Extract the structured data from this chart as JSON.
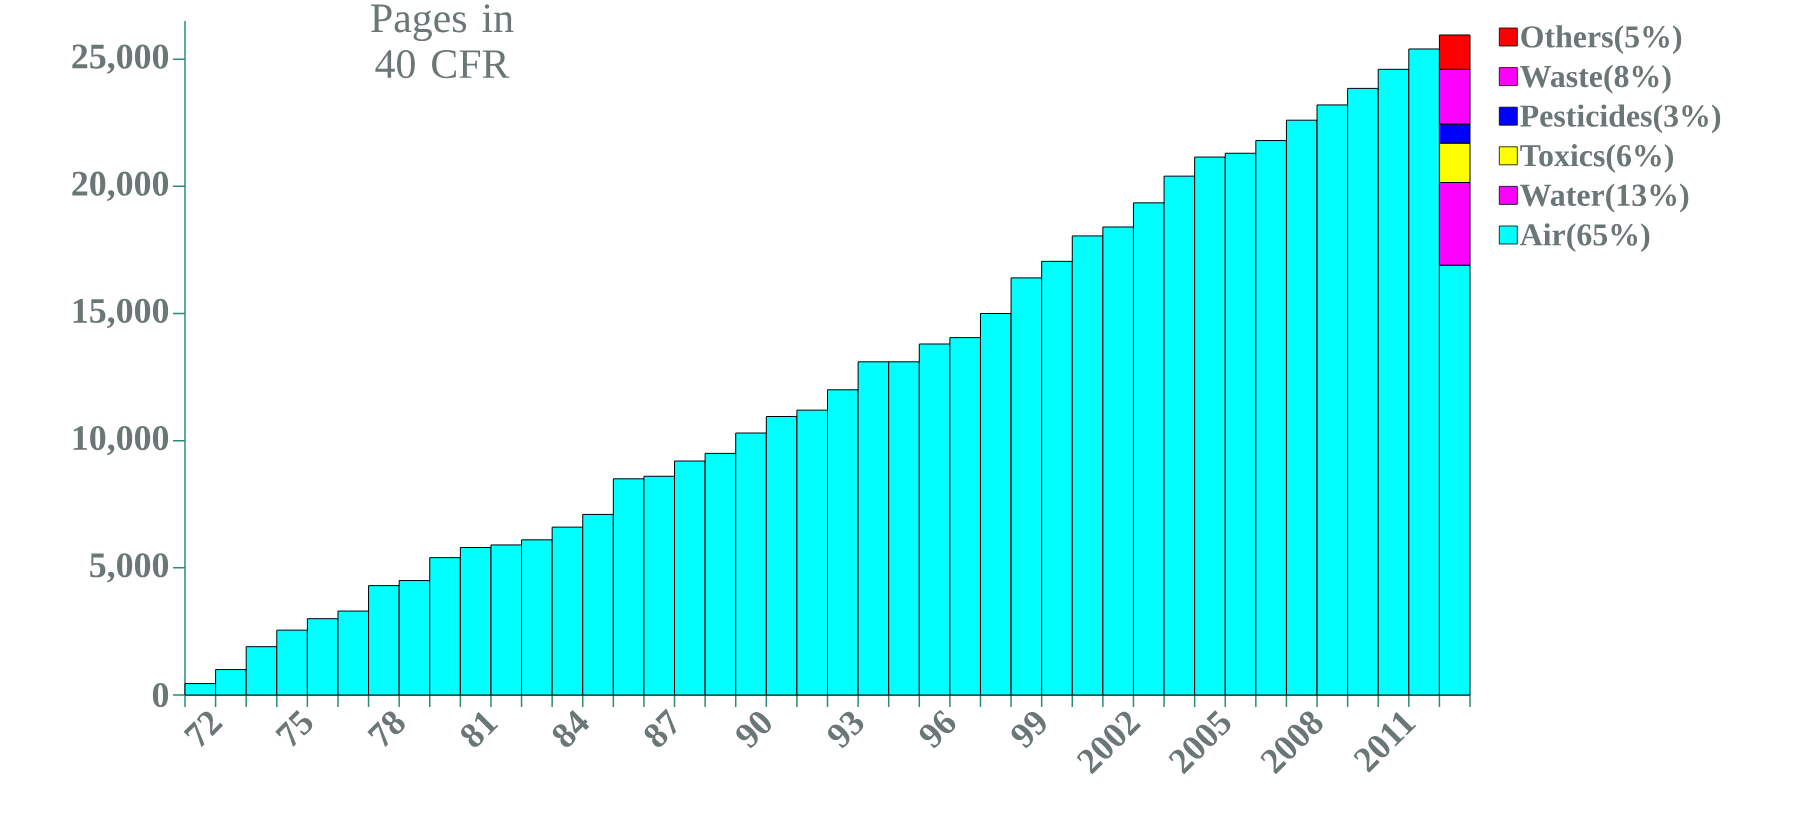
{
  "chart_data": {
    "type": "bar",
    "stacked": true,
    "title": "Pages in 40 CFR",
    "categories": [
      "72",
      null,
      null,
      "75",
      null,
      null,
      "78",
      null,
      null,
      "81",
      null,
      null,
      "84",
      null,
      null,
      "87",
      null,
      null,
      "90",
      null,
      null,
      "93",
      null,
      null,
      "96",
      null,
      null,
      "99",
      null,
      null,
      "2002",
      null,
      null,
      "2005",
      null,
      null,
      "2008",
      null,
      null,
      "2011",
      null,
      null
    ],
    "series": [
      {
        "name": "Air(65%)",
        "color": "#00ffff",
        "values": [
          450,
          1000,
          1900,
          2550,
          3000,
          3300,
          4300,
          4500,
          5400,
          5800,
          5900,
          6100,
          6600,
          7100,
          8500,
          8600,
          9200,
          9500,
          10300,
          10950,
          11200,
          12000,
          13100,
          13100,
          13800,
          14050,
          15000,
          16400,
          17050,
          18050,
          18400,
          19350,
          20400,
          21150,
          21300,
          21800,
          22600,
          23200,
          23850,
          24600,
          25400,
          16900
        ]
      },
      {
        "name": "Water(13%)",
        "color": "#ff00ff",
        "values": [
          null,
          null,
          null,
          null,
          null,
          null,
          null,
          null,
          null,
          null,
          null,
          null,
          null,
          null,
          null,
          null,
          null,
          null,
          null,
          null,
          null,
          null,
          null,
          null,
          null,
          null,
          null,
          null,
          null,
          null,
          null,
          null,
          null,
          null,
          null,
          null,
          null,
          null,
          null,
          null,
          null,
          3250
        ]
      },
      {
        "name": "Toxics(6%)",
        "color": "#ffff00",
        "values": [
          null,
          null,
          null,
          null,
          null,
          null,
          null,
          null,
          null,
          null,
          null,
          null,
          null,
          null,
          null,
          null,
          null,
          null,
          null,
          null,
          null,
          null,
          null,
          null,
          null,
          null,
          null,
          null,
          null,
          null,
          null,
          null,
          null,
          null,
          null,
          null,
          null,
          null,
          null,
          null,
          null,
          1550
        ]
      },
      {
        "name": "Pesticides(3%)",
        "color": "#0000ff",
        "values": [
          null,
          null,
          null,
          null,
          null,
          null,
          null,
          null,
          null,
          null,
          null,
          null,
          null,
          null,
          null,
          null,
          null,
          null,
          null,
          null,
          null,
          null,
          null,
          null,
          null,
          null,
          null,
          null,
          null,
          null,
          null,
          null,
          null,
          null,
          null,
          null,
          null,
          null,
          null,
          null,
          null,
          750
        ]
      },
      {
        "name": "Waste(8%)",
        "color": "#ff00ff",
        "values": [
          null,
          null,
          null,
          null,
          null,
          null,
          null,
          null,
          null,
          null,
          null,
          null,
          null,
          null,
          null,
          null,
          null,
          null,
          null,
          null,
          null,
          null,
          null,
          null,
          null,
          null,
          null,
          null,
          null,
          null,
          null,
          null,
          null,
          null,
          null,
          null,
          null,
          null,
          null,
          null,
          null,
          2150
        ]
      },
      {
        "name": "Others(5%)",
        "color": "#ff0000",
        "values": [
          null,
          null,
          null,
          null,
          null,
          null,
          null,
          null,
          null,
          null,
          null,
          null,
          null,
          null,
          null,
          null,
          null,
          null,
          null,
          null,
          null,
          null,
          null,
          null,
          null,
          null,
          null,
          null,
          null,
          null,
          null,
          null,
          null,
          null,
          null,
          null,
          null,
          null,
          null,
          null,
          null,
          1350
        ]
      }
    ],
    "ylim": [
      0,
      26500
    ],
    "yticks": [
      0,
      {
        "value": 5000,
        "label": "5,000"
      },
      {
        "value": 10000,
        "label": "10,000"
      },
      {
        "value": 15000,
        "label": "15,000"
      },
      {
        "value": 20000,
        "label": "20,000"
      },
      {
        "value": 25000,
        "label": "25,000"
      }
    ],
    "legend": "right",
    "grid": false
  }
}
